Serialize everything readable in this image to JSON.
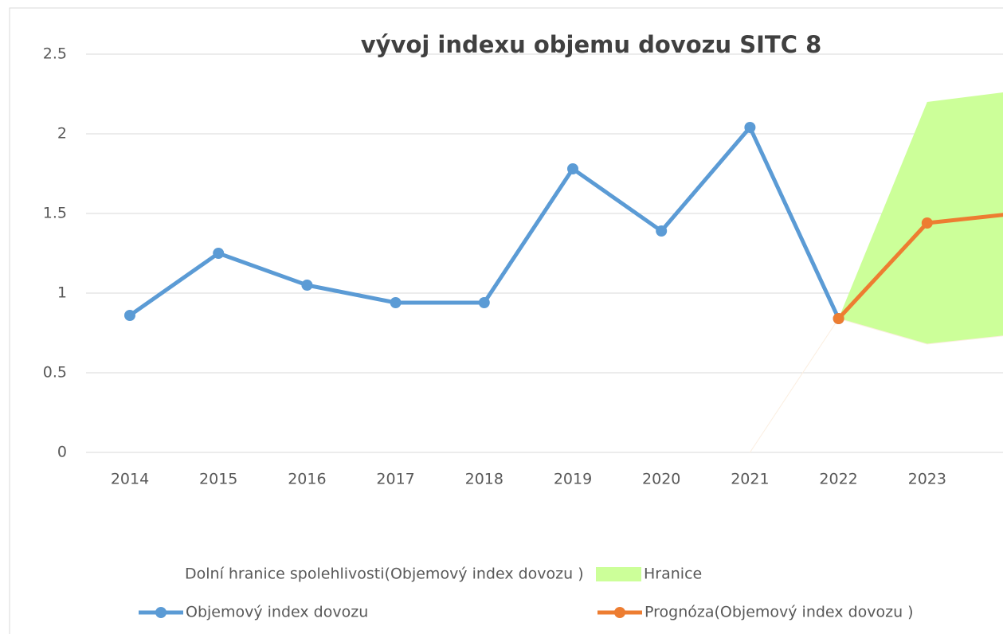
{
  "chart_data": {
    "type": "line",
    "title": "vývoj indexu objemu dovozu SITC 8",
    "categories": [
      "2014",
      "2015",
      "2016",
      "2017",
      "2018",
      "2019",
      "2020",
      "2021",
      "2022",
      "2023",
      null
    ],
    "series": [
      {
        "name": "Dolní hranice spolehlivosti(Objemový index dovozu )",
        "color": "#fbeee0",
        "values": [
          null,
          null,
          null,
          null,
          null,
          null,
          null,
          0,
          0.84,
          0.68,
          0.74
        ]
      },
      {
        "name": "Hranice",
        "color": "#ccff99",
        "stacked_on": 0,
        "values": [
          null,
          null,
          null,
          null,
          null,
          null,
          null,
          null,
          0,
          1.52,
          1.53
        ]
      },
      {
        "name": "Objemový index dovozu",
        "color": "#5b9bd5",
        "values": [
          0.86,
          1.25,
          1.05,
          0.94,
          0.94,
          1.78,
          1.39,
          2.04,
          0.84,
          null,
          null
        ]
      },
      {
        "name": "Prognóza(Objemový index dovozu )",
        "color": "#ed7d31",
        "values": [
          null,
          null,
          null,
          null,
          null,
          null,
          null,
          null,
          0.84,
          1.44,
          1.5
        ]
      }
    ],
    "ylim": [
      0,
      2.5
    ],
    "yticks": [
      0,
      0.5,
      1,
      1.5,
      2,
      2.5
    ],
    "grid": true
  }
}
